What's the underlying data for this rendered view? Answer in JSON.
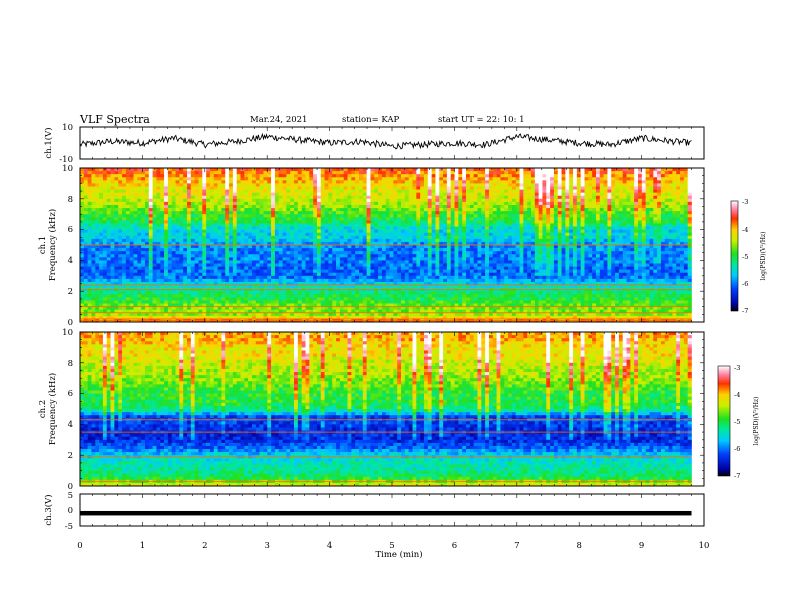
{
  "header": {
    "title": "VLF Spectra",
    "date": "Mar.24, 2021",
    "station": "station= KAP",
    "start": "start  UT =   22: 10: 1"
  },
  "chart_data": [
    {
      "type": "line",
      "panel": "ch1-waveform",
      "ylabel": "ch.1(V)",
      "ylim": [
        -10,
        10
      ],
      "yticks": [
        "10",
        "-10"
      ],
      "xlim": [
        0,
        10
      ],
      "series": [
        {
          "x": [
            0,
            0.5,
            1,
            1.5,
            2,
            2.5,
            3,
            3.5,
            4,
            4.5,
            5,
            5.5,
            6,
            6.5,
            7,
            7.5,
            8,
            8.5,
            9,
            9.5,
            9.8
          ],
          "values": [
            -1,
            1,
            0,
            3,
            -1,
            1,
            4,
            2,
            0,
            1,
            -2,
            -1,
            0,
            -1,
            4,
            2,
            0,
            -1,
            3,
            1,
            0
          ]
        }
      ]
    },
    {
      "type": "heatmap",
      "panel": "ch1-spectrogram",
      "ylabel": "ch.1\nFrequency  (kHz)",
      "ylim": [
        0,
        10
      ],
      "yticks": [
        "0",
        "2",
        "4",
        "6",
        "8",
        "10"
      ],
      "xlim": [
        0,
        10
      ],
      "data_xlim": [
        0,
        9.8
      ],
      "colorbar": {
        "label": "log(PSD)(V²/Hz)",
        "range": [
          -7,
          -3
        ],
        "ticks": [
          "-3",
          "-4",
          "-5",
          "-6",
          "-7"
        ]
      },
      "frequency_profile": {
        "freq_khz": [
          0,
          0.5,
          1,
          1.5,
          2,
          2.5,
          3,
          3.5,
          4,
          4.5,
          5,
          5.5,
          6,
          6.5,
          7,
          7.5,
          8,
          8.5,
          9,
          9.5,
          10
        ],
        "log_psd": [
          -3.6,
          -4.6,
          -4.7,
          -5.0,
          -5.2,
          -5.6,
          -6.1,
          -6.1,
          -6.0,
          -6.0,
          -5.9,
          -5.6,
          -5.6,
          -5.1,
          -4.9,
          -4.6,
          -4.4,
          -4.3,
          -4.1,
          -3.9,
          -3.6
        ]
      },
      "lines_khz": [
        0.1,
        0.2,
        0.6,
        1.0,
        2.1,
        2.4,
        5.0
      ]
    },
    {
      "type": "heatmap",
      "panel": "ch2-spectrogram",
      "ylabel": "ch.2\nFrequency  (kHz)",
      "ylim": [
        0,
        10
      ],
      "yticks": [
        "0",
        "2",
        "4",
        "6",
        "8",
        "10"
      ],
      "xlim": [
        0,
        10
      ],
      "data_xlim": [
        0,
        9.8
      ],
      "colorbar": {
        "label": "log(PSD)(V²/Hz)",
        "range": [
          -7,
          -3
        ],
        "ticks": [
          "-3",
          "-4",
          "-5",
          "-6",
          "-7"
        ]
      },
      "frequency_profile": {
        "freq_khz": [
          0,
          0.5,
          1,
          1.5,
          2,
          2.5,
          3,
          3.5,
          4,
          4.5,
          5,
          5.5,
          6,
          6.5,
          7,
          7.5,
          8,
          8.5,
          9,
          9.5,
          10
        ],
        "log_psd": [
          -4.2,
          -5.0,
          -5.3,
          -5.4,
          -5.6,
          -6.1,
          -6.4,
          -6.4,
          -6.3,
          -6.2,
          -5.2,
          -5.0,
          -5.0,
          -4.8,
          -4.6,
          -4.5,
          -4.4,
          -4.2,
          -4.2,
          -4.0,
          -3.9
        ]
      },
      "lines_khz": [
        0.3,
        1.9,
        3.5,
        4.3
      ]
    },
    {
      "type": "line",
      "panel": "ch3-waveform",
      "ylabel": "ch.3(V)",
      "ylim": [
        -5,
        5
      ],
      "yticks": [
        "5",
        "0",
        "-5"
      ],
      "xlim": [
        0,
        10
      ],
      "xlabel": "Time  (min)",
      "xticks": [
        "0",
        "1",
        "2",
        "3",
        "4",
        "5",
        "6",
        "7",
        "8",
        "9",
        "10"
      ],
      "series": [
        {
          "x": [
            0,
            9.8
          ],
          "values": [
            -1,
            -1
          ],
          "band": 0.7
        }
      ]
    }
  ]
}
